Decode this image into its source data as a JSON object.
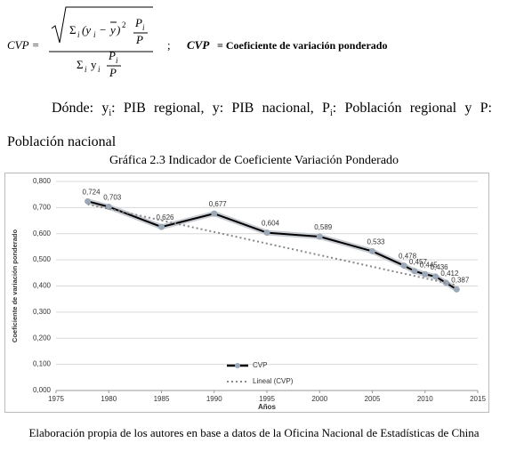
{
  "formula": {
    "lhs": "CVP =",
    "numerator": {
      "sum": "Σ",
      "sum_index": "i",
      "open": "(y",
      "term_index": "i",
      "minus": "−",
      "mean": "y",
      "close": ")",
      "power": "2",
      "weight_top": "P",
      "weight_index": "i",
      "weight_bottom": "P"
    },
    "denominator": {
      "sum": "Σ",
      "sum_index": "i",
      "var": "y",
      "var_index": "i",
      "weight_top": "P",
      "weight_index": "i",
      "weight_bottom": "P"
    },
    "separator": ";",
    "def_symbol": "CVP",
    "def_text": "= Coeficiente de variación ponderado"
  },
  "paragraph": [
    "Dónde: y",
    "i",
    ": PIB regional, y: PIB nacional, P",
    "i",
    ": Población regional y P: Población nacional"
  ],
  "caption": "Gráfica 2.3 Indicador de Coeficiente Variación Ponderado",
  "chart_data": {
    "type": "line",
    "x_label": "Años",
    "y_label": "Coeficiente de variación ponderado",
    "x": [
      1978,
      1980,
      1985,
      1990,
      1995,
      2000,
      2005,
      2008,
      2009,
      2010,
      2011,
      2012,
      2013
    ],
    "series": [
      {
        "name": "CVP",
        "color": "#000000",
        "marker_color": "#9aa8b8",
        "values": [
          0.724,
          0.703,
          0.626,
          0.677,
          0.604,
          0.589,
          0.533,
          0.478,
          0.457,
          0.445,
          0.436,
          0.412,
          0.387
        ],
        "value_labels": [
          "0,724",
          "0,703",
          "0,626",
          "0,677",
          "0,604",
          "0,589",
          "0,533",
          "0,478",
          "0,457",
          "0,445",
          "0,436",
          "0,412",
          "0,387"
        ]
      },
      {
        "name": "Lineal (CVP)",
        "color": "#888888",
        "style": "dotted",
        "x": [
          1978,
          2013
        ],
        "values": [
          0.713,
          0.403
        ]
      }
    ],
    "xlim": [
      1975,
      2015
    ],
    "xticks": [
      1975,
      1980,
      1985,
      1990,
      1995,
      2000,
      2005,
      2010,
      2015
    ],
    "ylim": [
      0,
      0.8
    ],
    "yticks": [
      {
        "value": 0,
        "label": "0,000"
      },
      {
        "value": 0.1,
        "label": "0,100"
      },
      {
        "value": 0.2,
        "label": "0,200"
      },
      {
        "value": 0.3,
        "label": "0,300"
      },
      {
        "value": 0.4,
        "label": "0,400"
      },
      {
        "value": 0.5,
        "label": "0,500"
      },
      {
        "value": 0.6,
        "label": "0,600"
      },
      {
        "value": 0.7,
        "label": "0,700"
      },
      {
        "value": 0.8,
        "label": "0,800"
      }
    ],
    "grid": true,
    "legend": "bottom"
  },
  "source": "Elaboración propia de los autores en base a datos de la Oficina Nacional de Estadísticas de China"
}
